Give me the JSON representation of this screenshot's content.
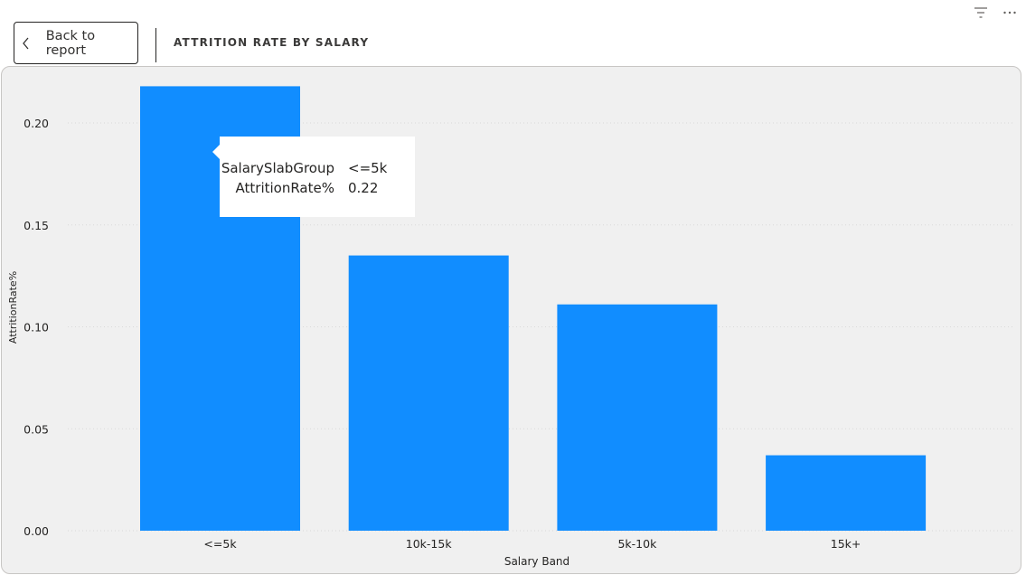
{
  "header": {
    "back_label": "Back to report",
    "title": "ATTRITION RATE BY SALARY",
    "icons": [
      "back-chevron-icon",
      "filter-icon",
      "more-options-icon"
    ]
  },
  "colors": {
    "bar": "#118DFF",
    "card_background": "#F0F0F0",
    "gridline": "#D9D9D9",
    "text": "#252423"
  },
  "chart_data": {
    "type": "bar",
    "categories": [
      "<=5k",
      "10k-15k",
      "5k-10k",
      "15k+"
    ],
    "values": [
      0.218,
      0.135,
      0.111,
      0.037
    ],
    "xlabel": "Salary Band",
    "ylabel": "AttritionRate%",
    "ylim": [
      0,
      0.2
    ],
    "yticks": [
      "0.00",
      "0.05",
      "0.10",
      "0.15",
      "0.20"
    ],
    "grid": true,
    "legend": "none"
  },
  "tooltip": {
    "rows": [
      {
        "key": "SalarySlabGroup",
        "value": "<=5k"
      },
      {
        "key": "AttritionRate%",
        "value": "0.22"
      }
    ]
  }
}
